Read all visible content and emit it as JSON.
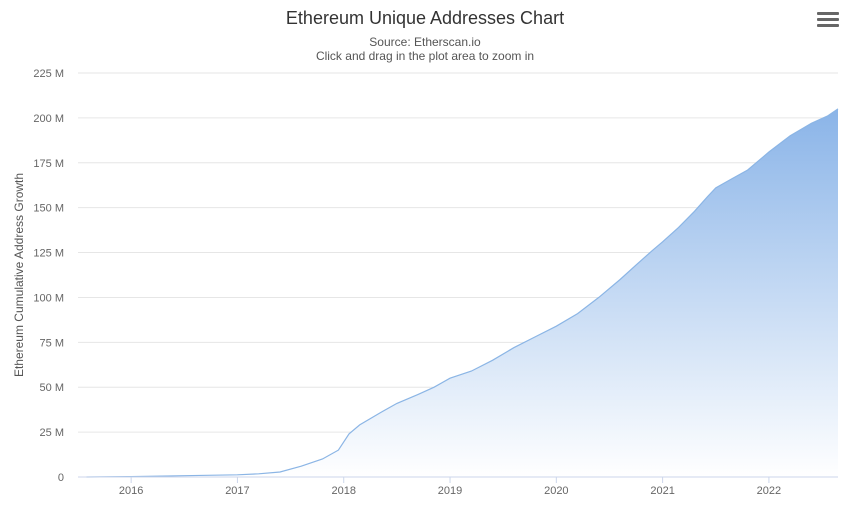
{
  "chart_data": {
    "type": "area",
    "title": "Ethereum Unique Addresses Chart",
    "subtitle_lines": [
      "Source: Etherscan.io",
      "Click and drag in the plot area to zoom in"
    ],
    "xlabel": "",
    "ylabel": "Ethereum Cumulative Address Growth",
    "xlim": [
      2015.5,
      2022.65
    ],
    "ylim": [
      0,
      225000000
    ],
    "x_ticks": [
      2016,
      2017,
      2018,
      2019,
      2020,
      2021,
      2022
    ],
    "y_ticks": [
      0,
      25000000,
      50000000,
      75000000,
      100000000,
      125000000,
      150000000,
      175000000,
      200000000,
      225000000
    ],
    "y_tick_labels": [
      "0",
      "25 M",
      "50 M",
      "75 M",
      "100 M",
      "125 M",
      "150 M",
      "175 M",
      "200 M",
      "225 M"
    ],
    "grid": true,
    "legend": "none",
    "series": [
      {
        "x": [
          2015.58,
          2016.0,
          2016.5,
          2017.0,
          2017.2,
          2017.4,
          2017.6,
          2017.8,
          2017.95,
          2018.05,
          2018.15,
          2018.35,
          2018.5,
          2018.7,
          2018.85,
          2019.0,
          2019.2,
          2019.4,
          2019.6,
          2019.8,
          2020.0,
          2020.2,
          2020.4,
          2020.6,
          2020.75,
          2020.9,
          2021.0,
          2021.15,
          2021.3,
          2021.42,
          2021.5,
          2021.65,
          2021.8,
          2022.0,
          2022.2,
          2022.4,
          2022.55,
          2022.65
        ],
        "values": [
          0,
          200000,
          700000,
          1200000,
          1800000,
          2800000,
          6000000,
          10000000,
          15000000,
          24000000,
          29000000,
          36000000,
          41000000,
          46000000,
          50000000,
          55000000,
          59000000,
          65000000,
          72000000,
          78000000,
          84000000,
          91000000,
          100000000,
          110000000,
          118000000,
          126000000,
          131000000,
          139000000,
          148000000,
          156000000,
          161000000,
          166000000,
          171000000,
          181000000,
          190000000,
          197000000,
          201000000,
          205000000
        ]
      }
    ],
    "colors": {
      "line": "#8bb5e5",
      "fill_top": "#8ab4e8",
      "fill_bottom": "#ffffff",
      "grid": "#e6e6e6",
      "axis": "#ccd6eb"
    }
  }
}
